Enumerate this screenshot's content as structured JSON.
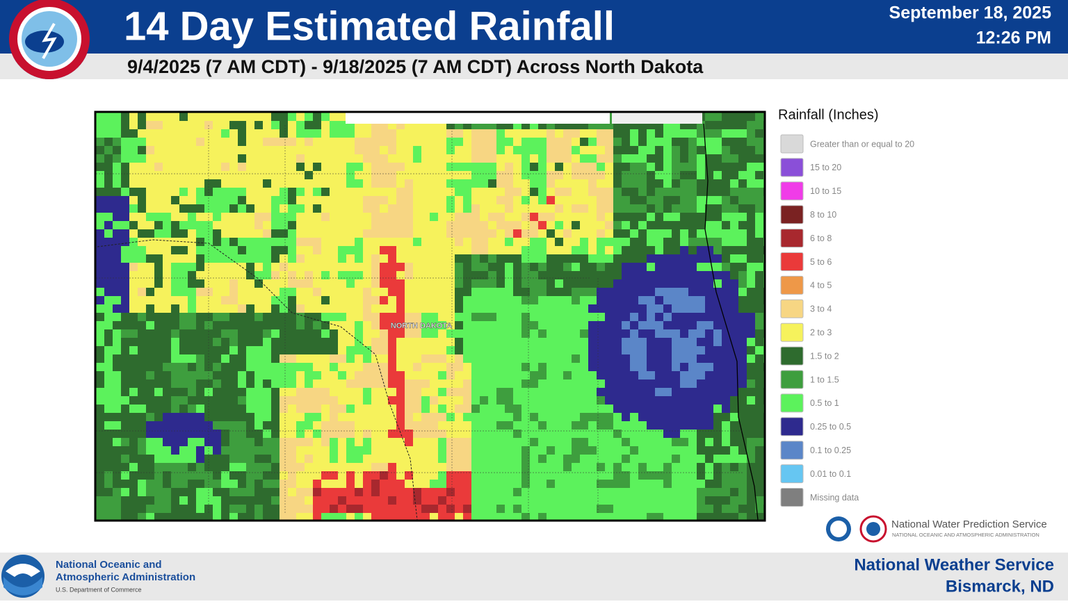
{
  "header": {
    "title": "14 Day Estimated Rainfall",
    "date": "September 18, 2025",
    "time": "12:26 PM",
    "subtitle": "9/4/2025 (7 AM CDT) - 9/18/2025 (7 AM CDT) Across North Dakota"
  },
  "map": {
    "label": "NORTH DAKOTA"
  },
  "legend": {
    "title": "Rainfall (Inches)",
    "items": [
      {
        "label": "Greater than or equal to 20",
        "color": "#d9d9d9"
      },
      {
        "label": "15 to 20",
        "color": "#8a4fd8"
      },
      {
        "label": "10 to 15",
        "color": "#f03ce8"
      },
      {
        "label": "8 to 10",
        "color": "#7a2222"
      },
      {
        "label": "6 to 8",
        "color": "#a8282e"
      },
      {
        "label": "5 to 6",
        "color": "#ea3a3a"
      },
      {
        "label": "4 to 5",
        "color": "#ee9848"
      },
      {
        "label": "3 to 4",
        "color": "#f7d683"
      },
      {
        "label": "2 to 3",
        "color": "#f6f25c"
      },
      {
        "label": "1.5 to 2",
        "color": "#2e6b2e"
      },
      {
        "label": "1 to 1.5",
        "color": "#3e9e3e"
      },
      {
        "label": "0.5 to 1",
        "color": "#5cf25c"
      },
      {
        "label": "0.25 to 0.5",
        "color": "#2e2a8e"
      },
      {
        "label": "0.1 to 0.25",
        "color": "#5b86c8"
      },
      {
        "label": "0.01 to 0.1",
        "color": "#66c6f2"
      },
      {
        "label": "Missing data",
        "color": "#7f7f7f"
      }
    ]
  },
  "credits": {
    "name": "National Water Prediction Service",
    "agency": "NATIONAL OCEANIC AND ATMOSPHERIC ADMINISTRATION"
  },
  "footer": {
    "noaa_line1": "National Oceanic and",
    "noaa_line2": "Atmospheric Administration",
    "department": "U.S. Department of Commerce",
    "office_name": "National Weather Service",
    "office_location": "Bismarck, ND"
  }
}
